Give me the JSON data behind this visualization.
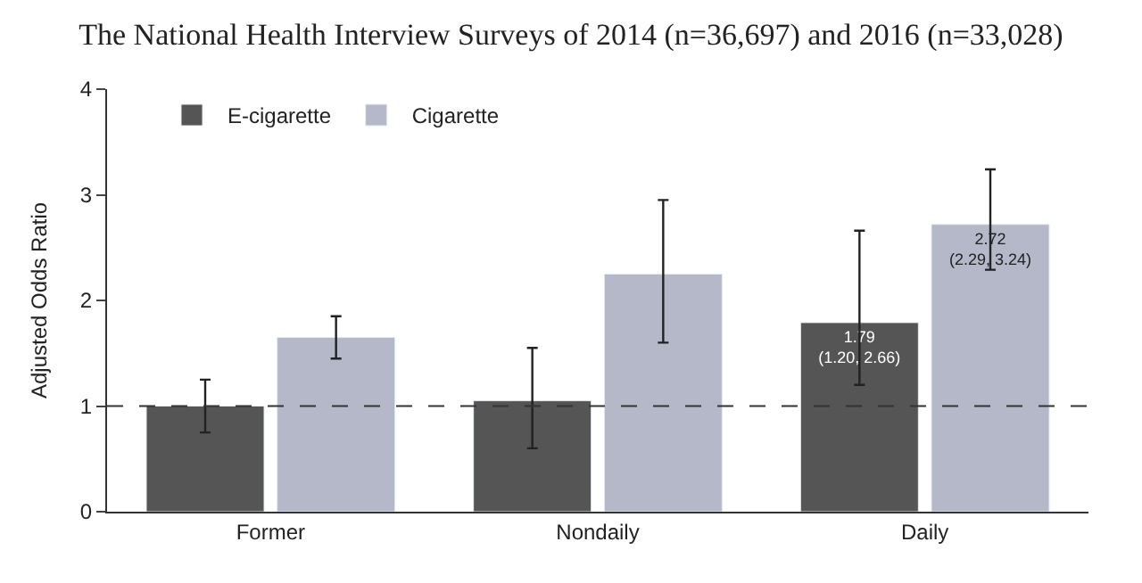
{
  "chart_data": {
    "type": "bar",
    "title": "The National Health Interview Surveys of 2014 (n=36,697) and 2016 (n=33,028)",
    "ylabel": "Adjusted Odds Ratio",
    "categories": [
      "Former",
      "Nondaily",
      "Daily"
    ],
    "series": [
      {
        "name": "E-cigarette",
        "color": "#555555",
        "values": [
          1.0,
          1.05,
          1.79
        ],
        "errors": [
          [
            0.75,
            1.25
          ],
          [
            0.6,
            1.55
          ],
          [
            1.2,
            2.66
          ]
        ],
        "value_labels": [
          null,
          null,
          "1.79\n(1.20, 2.66)"
        ]
      },
      {
        "name": "Cigarette",
        "color": "#b4b8c8",
        "values": [
          1.65,
          2.25,
          2.72
        ],
        "errors": [
          [
            1.45,
            1.85
          ],
          [
            1.6,
            2.95
          ],
          [
            2.29,
            3.24
          ]
        ],
        "value_labels": [
          null,
          null,
          "2.72\n(2.29, 3.24)"
        ]
      }
    ],
    "ylim": [
      0,
      4
    ],
    "yticks": [
      0,
      1,
      2,
      3,
      4
    ],
    "legend": "top left",
    "ref_lines": [
      {
        "axis": "y",
        "value": 1,
        "line_style": "dashed",
        "color": "#333333"
      }
    ]
  }
}
